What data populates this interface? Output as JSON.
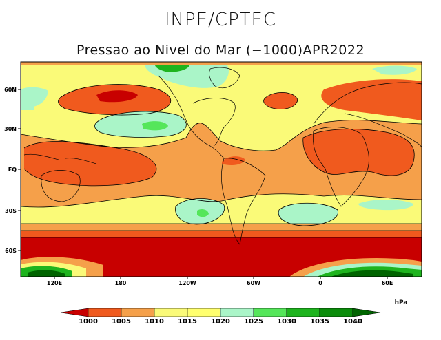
{
  "header": {
    "agency": "INPE/CPTEC",
    "title": "Pressao ao Nivel do Mar (−1000)APR2022"
  },
  "axes": {
    "lat_labels": [
      "60N",
      "30N",
      "EQ",
      "30S",
      "60S"
    ],
    "lon_labels": [
      "120E",
      "180",
      "120W",
      "60W",
      "0",
      "60E"
    ]
  },
  "colorbar": {
    "unit": "hPa",
    "levels": [
      "1000",
      "1005",
      "1010",
      "1015",
      "1020",
      "1025",
      "1030",
      "1035",
      "1040"
    ],
    "colors": [
      "#c80000",
      "#f05a1e",
      "#f5a04a",
      "#fafa78",
      "#ffff6e",
      "#aaf5c8",
      "#55e65a",
      "#1eb41e",
      "#0a8c0a",
      "#006400"
    ]
  },
  "palette": {
    "low_1000": "#c80000",
    "p1000_1005": "#f05a1e",
    "p1005_1010": "#f5a04a",
    "p1010_1015": "#fafa78",
    "p1015_1020": "#ffff6e",
    "p1020_1025": "#aaf5c8",
    "p1025_1030": "#55e65a",
    "p1030_1035": "#1eb41e",
    "p1035_1040": "#0a8c0a",
    "high_1040": "#006400"
  }
}
